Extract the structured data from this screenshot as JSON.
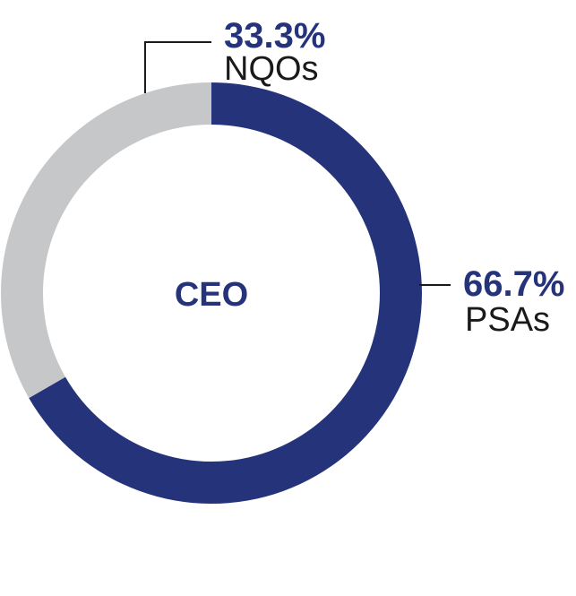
{
  "chart_data": {
    "type": "pie",
    "title": "CEO",
    "slices": [
      {
        "label": "PSAs",
        "value": 66.7,
        "value_label": "66.7%",
        "color": "#25337a"
      },
      {
        "label": "NQOs",
        "value": 33.3,
        "value_label": "33.3%",
        "color": "#c6c7c9"
      }
    ],
    "donut": true,
    "legend": "none"
  },
  "colors": {
    "accent": "#25337a",
    "secondary": "#c6c7c9",
    "text": "#1a1a1a"
  }
}
